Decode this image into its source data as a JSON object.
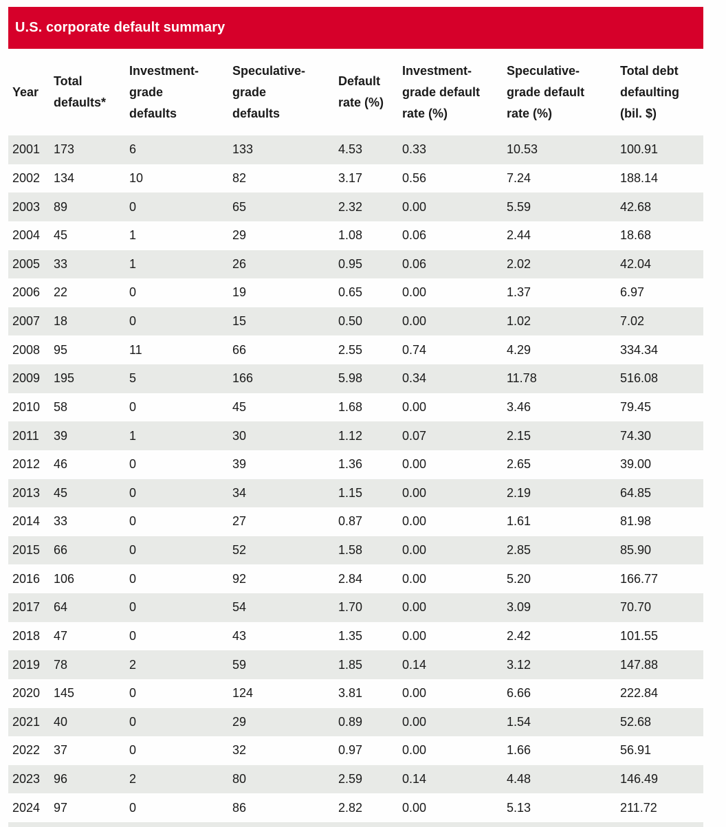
{
  "title": "U.S. corporate default summary",
  "colors": {
    "header_bar": "#d6002a",
    "row_stripe": "#e8eae7",
    "text": "#1a1a1a",
    "title_text": "#ffffff"
  },
  "table": {
    "columns_display": [
      {
        "id": "year",
        "lines": [
          "Year"
        ]
      },
      {
        "id": "total-defaults",
        "lines": [
          "Total",
          "defaults*"
        ]
      },
      {
        "id": "ig-defaults",
        "lines": [
          "Investment-",
          "grade",
          "defaults"
        ]
      },
      {
        "id": "sg-defaults",
        "lines": [
          "Speculative-",
          "grade",
          "defaults"
        ]
      },
      {
        "id": "default-rate",
        "lines": [
          "Default",
          "rate (%)"
        ]
      },
      {
        "id": "ig-default-rate",
        "lines": [
          "Investment-",
          "grade default",
          "rate (%)"
        ]
      },
      {
        "id": "sg-default-rate",
        "lines": [
          "Speculative-",
          "grade default",
          "rate (%)"
        ]
      },
      {
        "id": "total-debt",
        "lines": [
          "Total debt",
          "defaulting",
          "(bil. $)"
        ]
      }
    ],
    "decimal_columns_from_index": 4
  },
  "chart_data": {
    "type": "table",
    "title": "U.S. corporate default summary",
    "columns": [
      "Year",
      "Total defaults*",
      "Investment-grade defaults",
      "Speculative-grade defaults",
      "Default rate (%)",
      "Investment-grade default rate (%)",
      "Speculative-grade default rate (%)",
      "Total debt defaulting (bil. $)"
    ],
    "rows": [
      [
        2001,
        173,
        6,
        133,
        4.53,
        0.33,
        10.53,
        100.91
      ],
      [
        2002,
        134,
        10,
        82,
        3.17,
        0.56,
        7.24,
        188.14
      ],
      [
        2003,
        89,
        0,
        65,
        2.32,
        0.0,
        5.59,
        42.68
      ],
      [
        2004,
        45,
        1,
        29,
        1.08,
        0.06,
        2.44,
        18.68
      ],
      [
        2005,
        33,
        1,
        26,
        0.95,
        0.06,
        2.02,
        42.04
      ],
      [
        2006,
        22,
        0,
        19,
        0.65,
        0.0,
        1.37,
        6.97
      ],
      [
        2007,
        18,
        0,
        15,
        0.5,
        0.0,
        1.02,
        7.02
      ],
      [
        2008,
        95,
        11,
        66,
        2.55,
        0.74,
        4.29,
        334.34
      ],
      [
        2009,
        195,
        5,
        166,
        5.98,
        0.34,
        11.78,
        516.08
      ],
      [
        2010,
        58,
        0,
        45,
        1.68,
        0.0,
        3.46,
        79.45
      ],
      [
        2011,
        39,
        1,
        30,
        1.12,
        0.07,
        2.15,
        74.3
      ],
      [
        2012,
        46,
        0,
        39,
        1.36,
        0.0,
        2.65,
        39.0
      ],
      [
        2013,
        45,
        0,
        34,
        1.15,
        0.0,
        2.19,
        64.85
      ],
      [
        2014,
        33,
        0,
        27,
        0.87,
        0.0,
        1.61,
        81.98
      ],
      [
        2015,
        66,
        0,
        52,
        1.58,
        0.0,
        2.85,
        85.9
      ],
      [
        2016,
        106,
        0,
        92,
        2.84,
        0.0,
        5.2,
        166.77
      ],
      [
        2017,
        64,
        0,
        54,
        1.7,
        0.0,
        3.09,
        70.7
      ],
      [
        2018,
        47,
        0,
        43,
        1.35,
        0.0,
        2.42,
        101.55
      ],
      [
        2019,
        78,
        2,
        59,
        1.85,
        0.14,
        3.12,
        147.88
      ],
      [
        2020,
        145,
        0,
        124,
        3.81,
        0.0,
        6.66,
        222.84
      ],
      [
        2021,
        40,
        0,
        29,
        0.89,
        0.0,
        1.54,
        52.68
      ],
      [
        2022,
        37,
        0,
        32,
        0.97,
        0.0,
        1.66,
        56.91
      ],
      [
        2023,
        96,
        2,
        80,
        2.59,
        0.14,
        4.48,
        146.49
      ],
      [
        2024,
        97,
        0,
        86,
        2.82,
        0.0,
        5.13,
        211.72
      ]
    ]
  }
}
